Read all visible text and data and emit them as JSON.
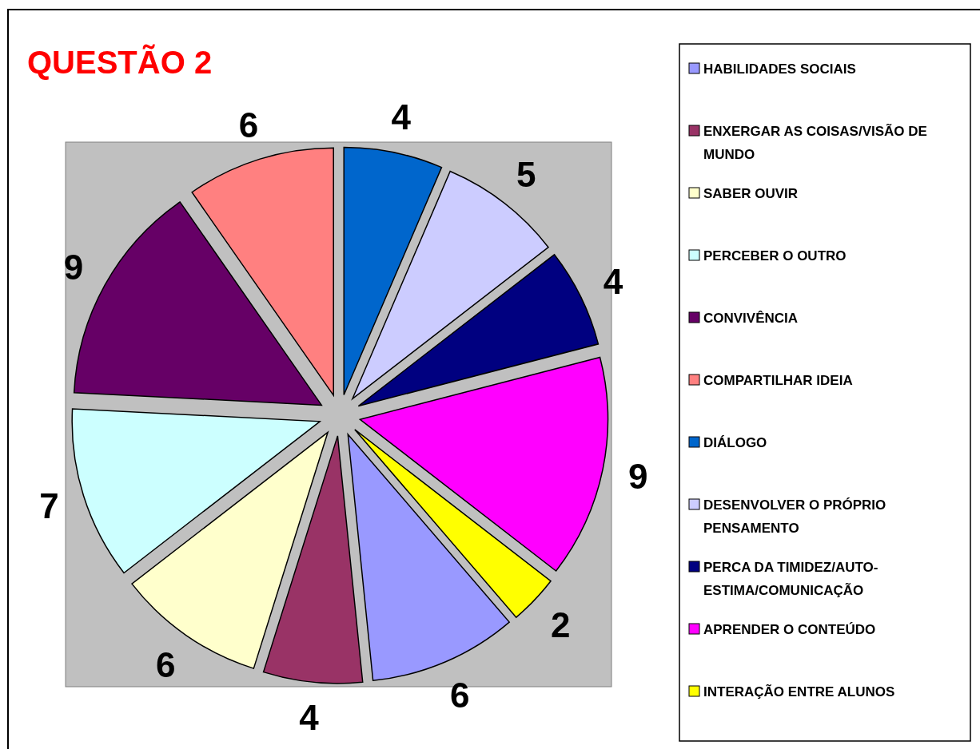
{
  "chart_data": {
    "type": "pie",
    "title": "QUESTÃO 2",
    "categories": [
      "HABILIDADES SOCIAIS",
      "ENXERGAR AS COISAS/VISÃO DE MUNDO",
      "SABER OUVIR",
      "PERCEBER O OUTRO",
      "CONVIVÊNCIA",
      "COMPARTILHAR IDEIA",
      "DIÁLOGO",
      "DESENVOLVER O PRÓPRIO PENSAMENTO",
      "PERCA DA TIMIDEZ/AUTO-ESTIMA/COMUNICAÇÃO",
      "APRENDER O CONTEÚDO",
      "INTERAÇÃO ENTRE ALUNOS"
    ],
    "values": [
      6,
      4,
      6,
      7,
      9,
      6,
      4,
      5,
      4,
      9,
      2
    ],
    "colors": [
      "#9999ff",
      "#993366",
      "#ffffcc",
      "#ccffff",
      "#660066",
      "#ff8080",
      "#0066cc",
      "#ccccff",
      "#000080",
      "#ff00ff",
      "#ffff00"
    ],
    "data_labels": true,
    "legend": "right"
  }
}
